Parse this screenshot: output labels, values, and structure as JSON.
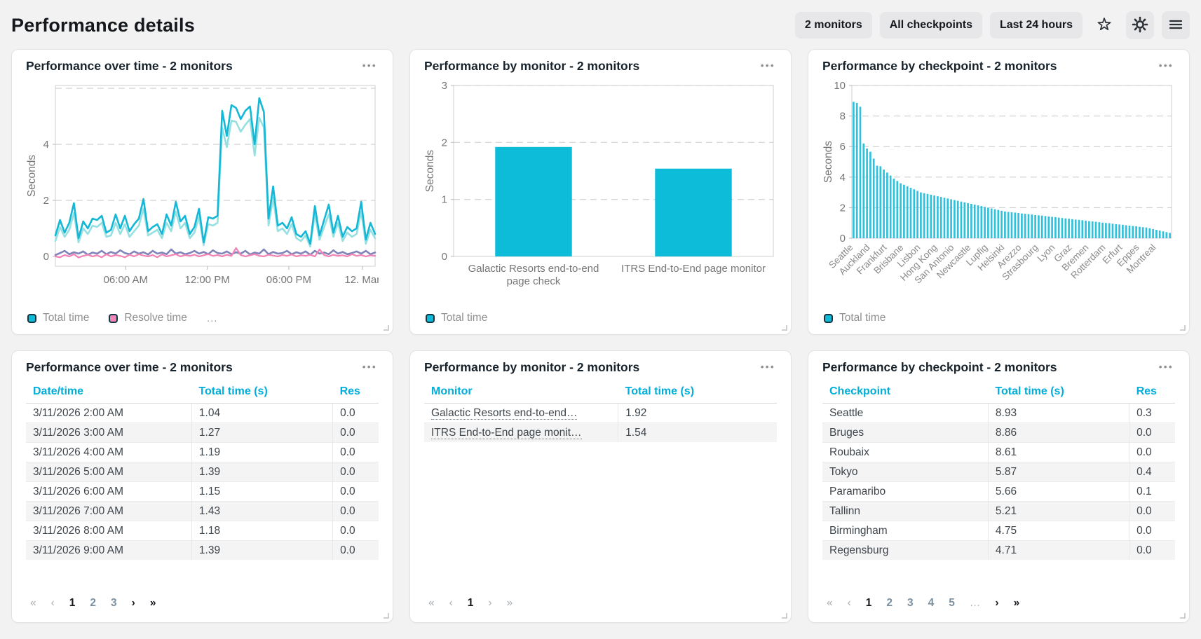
{
  "header": {
    "title": "Performance details",
    "filters": [
      {
        "label": "2 monitors"
      },
      {
        "label": "All checkpoints"
      },
      {
        "label": "Last 24 hours"
      }
    ]
  },
  "icons": {
    "more": "•••"
  },
  "cards": [
    {
      "title": "Performance over time - 2 monitors"
    },
    {
      "title": "Performance by monitor - 2 monitors"
    },
    {
      "title": "Performance by checkpoint - 2 monitors"
    },
    {
      "title": "Performance over time - 2 monitors"
    },
    {
      "title": "Performance by monitor - 2 monitors"
    },
    {
      "title": "Performance by checkpoint - 2 monitors"
    }
  ],
  "colors": {
    "accent_cyan": "#0cbcd9",
    "light_cyan": "#97e0e2",
    "purple": "#8184b9",
    "pink": "#f285b5",
    "table_header": "#00aeda"
  },
  "chart_data": [
    {
      "type": "line",
      "title": "Performance over time - 2 monitors",
      "ylabel": "Seconds",
      "ylim": [
        -0.35,
        6.1
      ],
      "yticks": [
        0,
        2,
        4
      ],
      "gridlines": [
        2,
        4,
        6
      ],
      "xticks": [
        {
          "label": "06:00 AM",
          "pos": 0.22
        },
        {
          "label": "12:00 PM",
          "pos": 0.475
        },
        {
          "label": "06:00 PM",
          "pos": 0.73
        },
        {
          "label": "12. Mar",
          "pos": 0.96
        }
      ],
      "legend": [
        {
          "label": "Total time",
          "color": "#0cbcd9"
        },
        {
          "label": "Resolve time",
          "color": "#f285b5"
        },
        {
          "label": "...",
          "color": null
        }
      ],
      "series": [
        {
          "name": "",
          "color": "#8184b9",
          "width": 2.6,
          "values": [
            0.05,
            0.12,
            0.2,
            0.08,
            0.15,
            0.1,
            0.18,
            0.06,
            0.14,
            0.1,
            0.2,
            0.08,
            0.16,
            0.1,
            0.22,
            0.12,
            0.08,
            0.18,
            0.1,
            0.15,
            0.07,
            0.2,
            0.1,
            0.14,
            0.08,
            0.25,
            0.1,
            0.15,
            0.08,
            0.12,
            0.2,
            0.1,
            0.16,
            0.08,
            0.22,
            0.12,
            0.1,
            0.18,
            0.08,
            0.15,
            0.1,
            0.2,
            0.07,
            0.14,
            0.1,
            0.25,
            0.08,
            0.16,
            0.1,
            0.12,
            0.2,
            0.08,
            0.15,
            0.1,
            0.18,
            0.06,
            0.2,
            0.1,
            0.14,
            0.08,
            0.22,
            0.1,
            0.16,
            0.08,
            0.12,
            0.18,
            0.1,
            0.2,
            0.08,
            0.14
          ]
        },
        {
          "name": "Resolve time",
          "color": "#f285b5",
          "width": 2.3,
          "values": [
            0.0,
            -0.03,
            0.05,
            0.0,
            0.08,
            -0.04,
            0.02,
            0.06,
            0.0,
            0.04,
            -0.03,
            0.08,
            0.0,
            0.05,
            0.02,
            -0.03,
            0.06,
            0.0,
            0.08,
            0.03,
            0.0,
            0.05,
            -0.03,
            0.07,
            0.0,
            0.04,
            0.08,
            0.0,
            0.05,
            0.02,
            0.06,
            0.0,
            0.04,
            0.08,
            0.02,
            0.05,
            0.0,
            0.06,
            0.02,
            0.3,
            0.05,
            0.0,
            0.04,
            0.08,
            0.02,
            0.0,
            0.06,
            0.03,
            0.0,
            0.05,
            0.02,
            0.07,
            0.0,
            0.04,
            0.02,
            0.06,
            0.0,
            0.25,
            0.05,
            0.0,
            0.06,
            0.02,
            0.04,
            0.0,
            0.08,
            0.02,
            0.05,
            0.0,
            0.04,
            0.02
          ]
        },
        {
          "name": "",
          "color": "#97e0e2",
          "width": 2.6,
          "values": [
            0.55,
            1.05,
            0.7,
            0.95,
            1.55,
            0.5,
            1.0,
            0.8,
            1.1,
            1.05,
            1.2,
            0.7,
            0.75,
            1.2,
            0.8,
            1.15,
            0.7,
            0.9,
            1.1,
            1.7,
            0.75,
            0.85,
            0.95,
            0.65,
            1.2,
            0.9,
            1.6,
            1.0,
            1.2,
            0.65,
            0.85,
            1.4,
            0.4,
            1.15,
            1.1,
            1.2,
            4.6,
            3.9,
            4.85,
            4.8,
            4.45,
            4.7,
            4.9,
            3.6,
            4.95,
            4.6,
            1.1,
            2.1,
            0.9,
            1.0,
            0.8,
            1.15,
            0.65,
            0.55,
            0.75,
            0.35,
            1.5,
            0.6,
            1.05,
            1.5,
            0.7,
            1.2,
            0.55,
            0.85,
            0.7,
            0.8,
            1.6,
            0.45,
            0.95,
            0.65
          ]
        },
        {
          "name": "Total time",
          "color": "#14b8d6",
          "width": 2.6,
          "values": [
            0.75,
            1.3,
            0.85,
            1.2,
            1.9,
            0.65,
            1.25,
            1.0,
            1.35,
            1.3,
            1.45,
            0.85,
            0.95,
            1.5,
            1.0,
            1.45,
            0.9,
            1.15,
            1.35,
            2.05,
            0.9,
            1.05,
            1.15,
            0.8,
            1.5,
            1.1,
            1.95,
            1.25,
            1.45,
            0.8,
            1.05,
            1.7,
            0.5,
            1.4,
            1.35,
            1.45,
            5.2,
            4.3,
            5.4,
            5.3,
            4.9,
            5.2,
            5.35,
            4.0,
            5.65,
            5.15,
            1.35,
            2.5,
            1.1,
            1.2,
            1.0,
            1.4,
            0.8,
            0.7,
            0.9,
            0.45,
            1.8,
            0.75,
            1.3,
            1.85,
            0.85,
            1.45,
            0.7,
            1.05,
            0.9,
            1.0,
            1.95,
            0.6,
            1.2,
            0.8
          ]
        }
      ]
    },
    {
      "type": "bar",
      "title": "Performance by monitor - 2 monitors",
      "ylabel": "Seconds",
      "ylim": [
        0,
        3
      ],
      "yticks": [
        0,
        1,
        2,
        3
      ],
      "gridlines": [
        1,
        2,
        3
      ],
      "bar_color": "#0cbcd9",
      "bar_ratio": 0.48,
      "categories": [
        [
          "Galactic Resorts end-to-end",
          "page check"
        ],
        [
          "ITRS End-to-End page monitor"
        ]
      ],
      "values": [
        1.92,
        1.54
      ],
      "legend": [
        {
          "label": "Total time",
          "color": "#0cbcd9"
        }
      ]
    },
    {
      "type": "bar",
      "title": "Performance by checkpoint - 2 monitors",
      "ylabel": "Seconds",
      "ylim": [
        0,
        10
      ],
      "yticks": [
        0,
        2,
        4,
        6,
        8,
        10
      ],
      "gridlines": [
        2,
        4,
        6,
        8,
        10
      ],
      "bar_color": "#2cc1dc",
      "bar_ratio": 0.55,
      "rotate_labels": true,
      "label_every": 5,
      "categories": [
        "Seattle",
        "Auckland",
        "Frankfurt",
        "Brisbane",
        "Lisbon",
        "Hong Kong",
        "San Antonio",
        "Newcastle",
        "Lupfig",
        "Helsinki",
        "Arezzo",
        "Strasbourg",
        "Lyon",
        "Graz",
        "Bremen",
        "Rotterdam",
        "Erfurt",
        "Eppes",
        "Montreal"
      ],
      "values": [
        8.93,
        8.86,
        8.61,
        6.2,
        5.87,
        5.66,
        5.21,
        4.75,
        4.71,
        4.5,
        4.3,
        4.1,
        3.9,
        3.75,
        3.6,
        3.5,
        3.4,
        3.3,
        3.2,
        3.1,
        3.0,
        2.95,
        2.9,
        2.85,
        2.8,
        2.75,
        2.7,
        2.65,
        2.6,
        2.55,
        2.5,
        2.45,
        2.4,
        2.35,
        2.3,
        2.25,
        2.2,
        2.15,
        2.1,
        2.05,
        2.0,
        1.95,
        1.9,
        1.85,
        1.8,
        1.75,
        1.72,
        1.7,
        1.68,
        1.65,
        1.62,
        1.6,
        1.58,
        1.55,
        1.52,
        1.5,
        1.48,
        1.45,
        1.42,
        1.4,
        1.38,
        1.35,
        1.32,
        1.3,
        1.28,
        1.25,
        1.22,
        1.2,
        1.18,
        1.15,
        1.12,
        1.1,
        1.08,
        1.05,
        1.02,
        1.0,
        0.98,
        0.95,
        0.92,
        0.9,
        0.88,
        0.85,
        0.82,
        0.8,
        0.78,
        0.75,
        0.72,
        0.7,
        0.65,
        0.6,
        0.55,
        0.5,
        0.45,
        0.4,
        0.35
      ],
      "legend": [
        {
          "label": "Total time",
          "color": "#0cbcd9"
        }
      ]
    }
  ],
  "tables": {
    "over_time": {
      "headers": [
        "Date/time",
        "Total time (s)",
        "Res"
      ],
      "col_widths": [
        "47%",
        "40%",
        "13%"
      ],
      "rows": [
        [
          "3/11/2026 2:00 AM",
          "1.04",
          "0.0"
        ],
        [
          "3/11/2026 3:00 AM",
          "1.27",
          "0.0"
        ],
        [
          "3/11/2026 4:00 AM",
          "1.19",
          "0.0"
        ],
        [
          "3/11/2026 5:00 AM",
          "1.39",
          "0.0"
        ],
        [
          "3/11/2026 6:00 AM",
          "1.15",
          "0.0"
        ],
        [
          "3/11/2026 7:00 AM",
          "1.43",
          "0.0"
        ],
        [
          "3/11/2026 8:00 AM",
          "1.18",
          "0.0"
        ],
        [
          "3/11/2026 9:00 AM",
          "1.39",
          "0.0"
        ]
      ]
    },
    "by_monitor": {
      "headers": [
        "Monitor",
        "Total time (s)"
      ],
      "col_widths": [
        "55%",
        "45%"
      ],
      "link_col": 0,
      "rows": [
        [
          "Galactic Resorts end-to-end…",
          "1.92"
        ],
        [
          "ITRS End-to-End page monit…",
          "1.54"
        ]
      ]
    },
    "by_checkpoint": {
      "headers": [
        "Checkpoint",
        "Total time (s)",
        "Res"
      ],
      "col_widths": [
        "47%",
        "40%",
        "13%"
      ],
      "rows": [
        [
          "Seattle",
          "8.93",
          "0.3"
        ],
        [
          "Bruges",
          "8.86",
          "0.0"
        ],
        [
          "Roubaix",
          "8.61",
          "0.0"
        ],
        [
          "Tokyo",
          "5.87",
          "0.4"
        ],
        [
          "Paramaribo",
          "5.66",
          "0.1"
        ],
        [
          "Tallinn",
          "5.21",
          "0.0"
        ],
        [
          "Birmingham",
          "4.75",
          "0.0"
        ],
        [
          "Regensburg",
          "4.71",
          "0.0"
        ]
      ]
    }
  },
  "pagers": [
    {
      "items": [
        {
          "t": "«",
          "s": "muted"
        },
        {
          "t": "‹",
          "s": "muted"
        },
        {
          "t": "1",
          "s": "current"
        },
        {
          "t": "2",
          "s": "page"
        },
        {
          "t": "3",
          "s": "page"
        },
        {
          "t": "›",
          "s": "active"
        },
        {
          "t": "»",
          "s": "active"
        }
      ]
    },
    {
      "items": [
        {
          "t": "«",
          "s": "muted"
        },
        {
          "t": "‹",
          "s": "muted"
        },
        {
          "t": "1",
          "s": "current"
        },
        {
          "t": "›",
          "s": "muted"
        },
        {
          "t": "»",
          "s": "muted"
        }
      ]
    },
    {
      "items": [
        {
          "t": "«",
          "s": "muted"
        },
        {
          "t": "‹",
          "s": "muted"
        },
        {
          "t": "1",
          "s": "current"
        },
        {
          "t": "2",
          "s": "page"
        },
        {
          "t": "3",
          "s": "page"
        },
        {
          "t": "4",
          "s": "page"
        },
        {
          "t": "5",
          "s": "page"
        },
        {
          "t": "…",
          "s": "muted"
        },
        {
          "t": "›",
          "s": "active"
        },
        {
          "t": "»",
          "s": "active"
        }
      ]
    }
  ]
}
